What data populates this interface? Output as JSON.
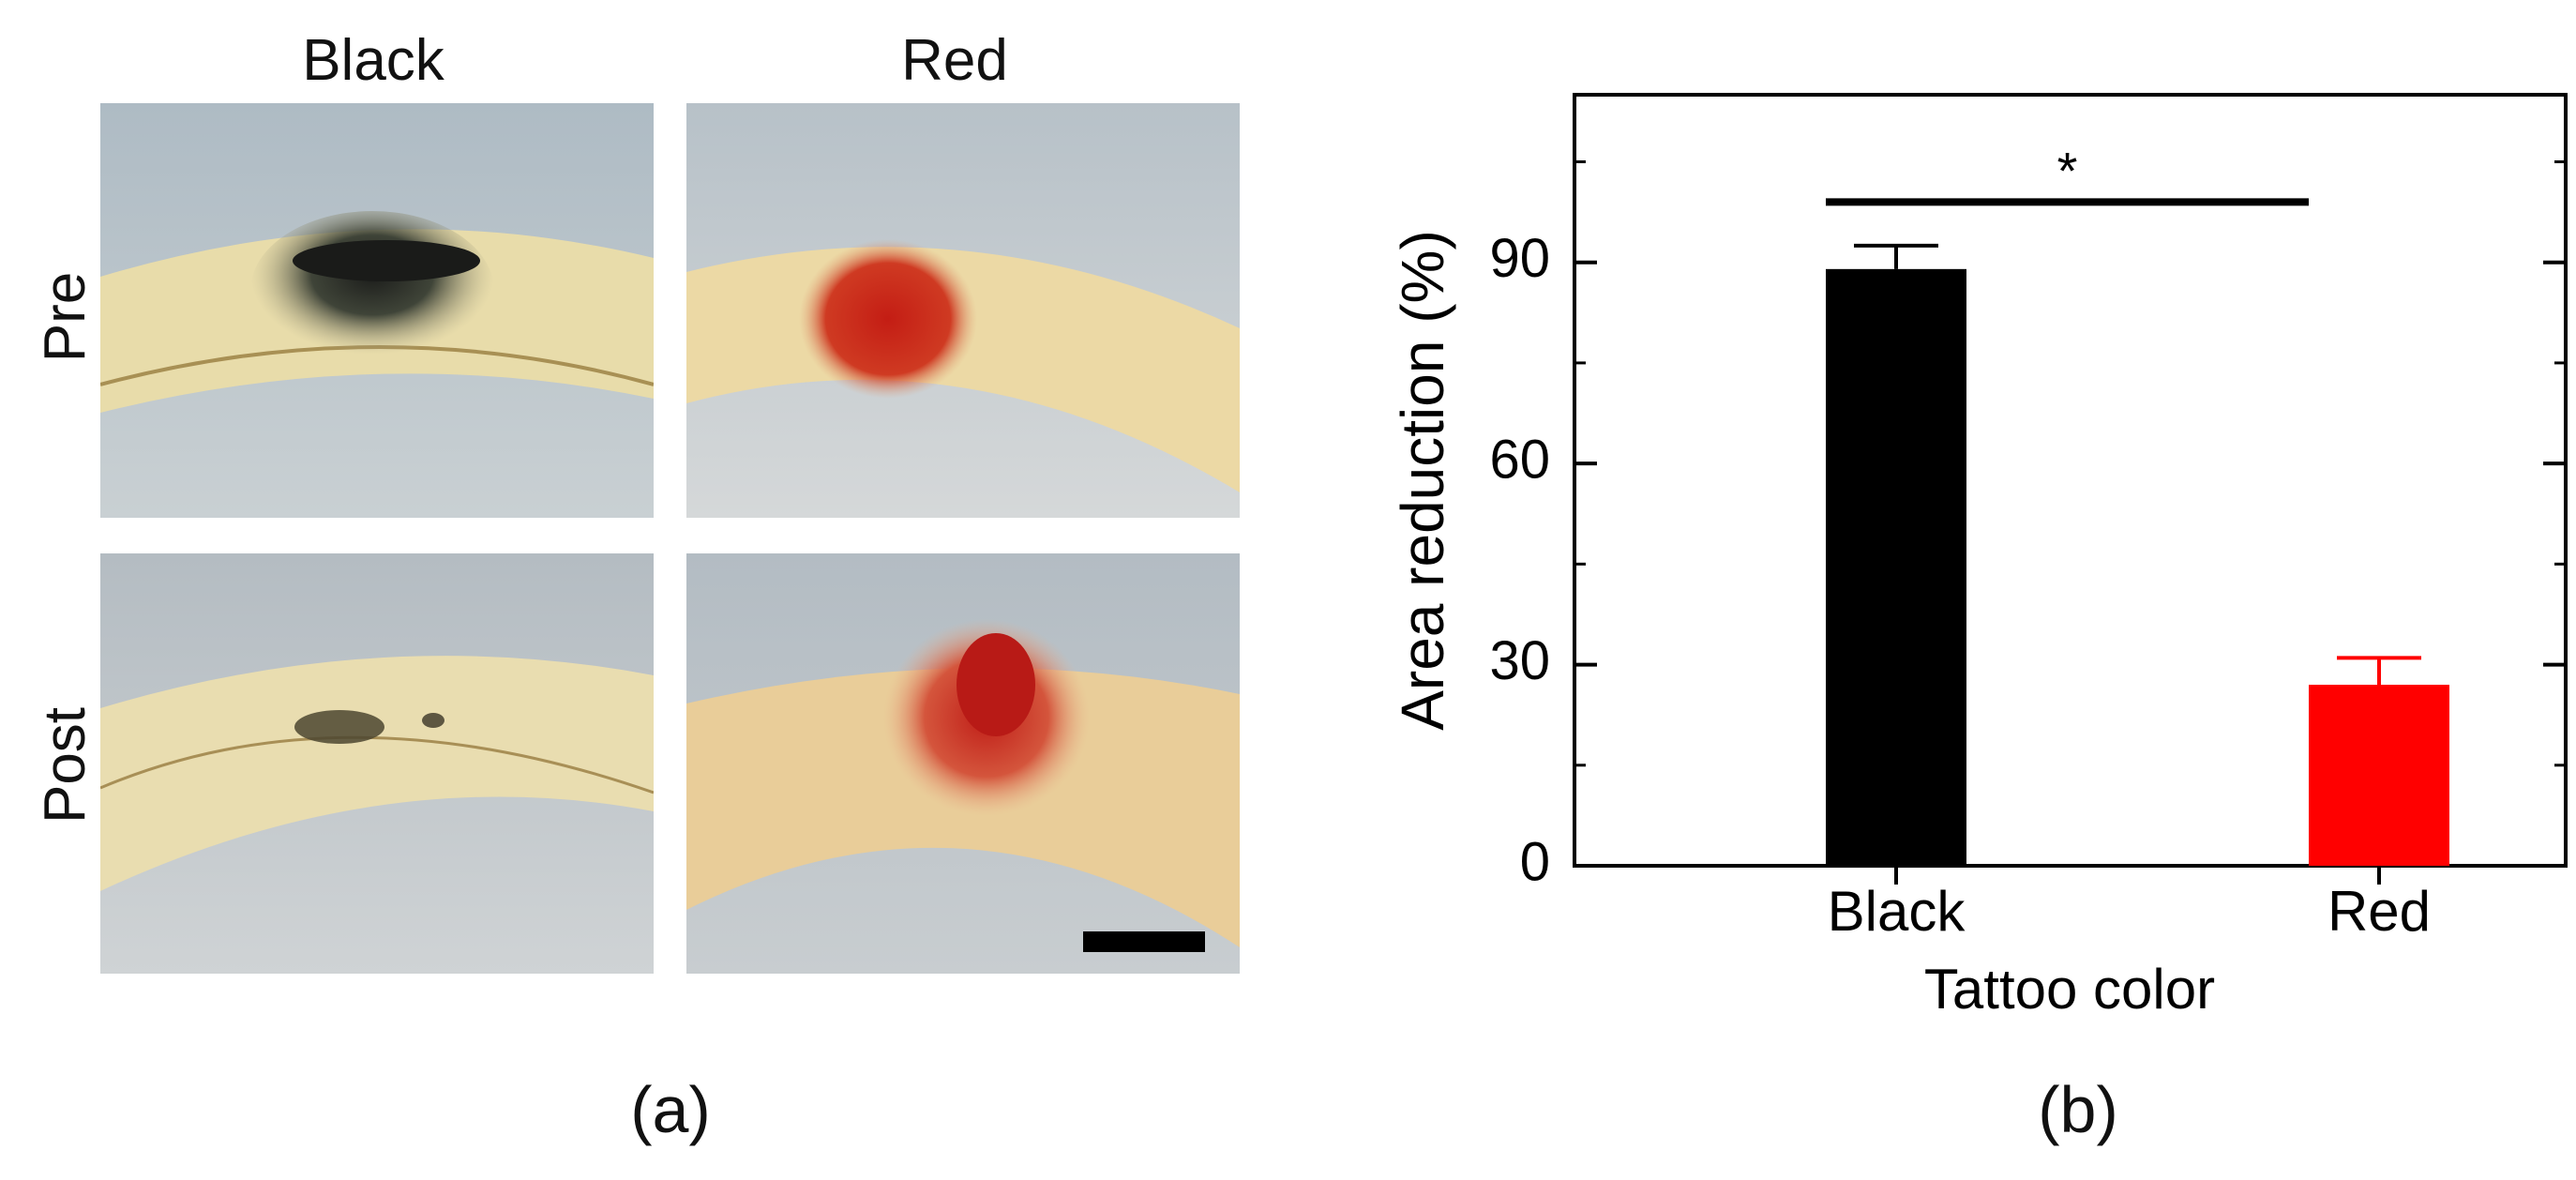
{
  "figure_a": {
    "columns": [
      "Black",
      "Red"
    ],
    "rows": [
      "Pre",
      "Post"
    ],
    "panel_label": "(a)"
  },
  "figure_b": {
    "panel_label": "(b)"
  },
  "chart_data": {
    "type": "bar",
    "categories": [
      "Black",
      "Red"
    ],
    "values": [
      89,
      27
    ],
    "error": [
      3.5,
      4
    ],
    "colors": [
      "#000000",
      "#ff0000"
    ],
    "xlabel": "Tattoo color",
    "ylabel": "Area reduction (%)",
    "ylim": [
      0,
      115
    ],
    "yticks": [
      0,
      30,
      60,
      90
    ],
    "ytick_labels": [
      "0",
      "30",
      "60",
      "90"
    ],
    "significance": {
      "between": [
        "Black",
        "Red"
      ],
      "y": 99,
      "label": "*"
    },
    "grid": false,
    "legend": "none"
  }
}
